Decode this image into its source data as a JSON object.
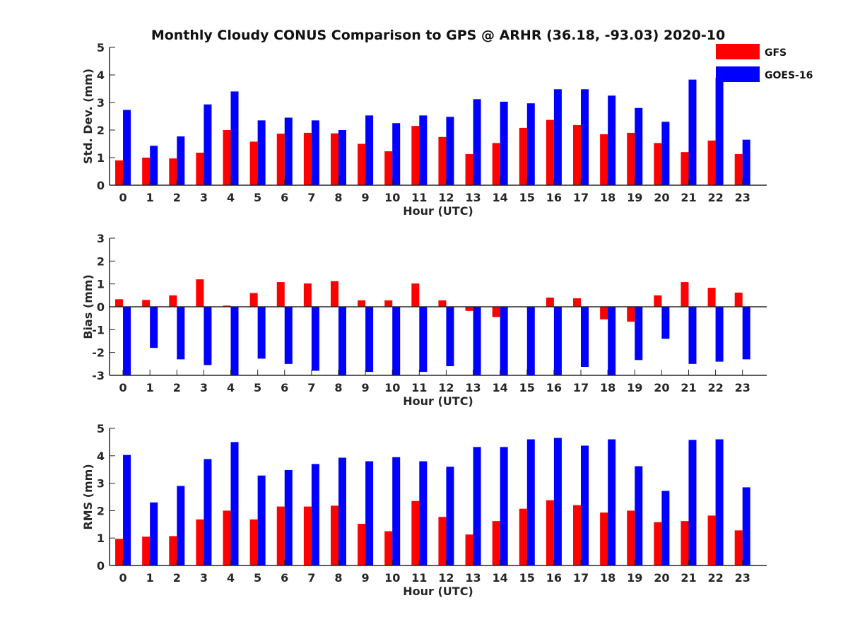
{
  "figure": {
    "title": "Monthly Cloudy CONUS Comparison to GPS @ ARHR (36.18, -93.03) 2020-10"
  },
  "legend": {
    "placement": "top-right",
    "entries": [
      {
        "name": "GFS",
        "color": "#ff0000"
      },
      {
        "name": "GOES-16",
        "color": "#0000ff"
      }
    ]
  },
  "chart_data": [
    {
      "type": "bar",
      "ylabel": "Std. Dev. (mm)",
      "xlabel": "Hour (UTC)",
      "ylim": [
        0,
        5
      ],
      "yticks": [
        0,
        1,
        2,
        3,
        4,
        5
      ],
      "categories": [
        "0",
        "1",
        "2",
        "3",
        "4",
        "5",
        "6",
        "7",
        "8",
        "9",
        "10",
        "11",
        "12",
        "13",
        "14",
        "15",
        "16",
        "17",
        "18",
        "19",
        "20",
        "21",
        "22",
        "23"
      ],
      "series": [
        {
          "name": "GFS",
          "color": "#ff0000",
          "values": [
            0.9,
            1.0,
            0.97,
            1.18,
            2.0,
            1.58,
            1.87,
            1.9,
            1.88,
            1.5,
            1.23,
            2.15,
            1.75,
            1.13,
            1.53,
            2.08,
            2.37,
            2.18,
            1.85,
            1.9,
            1.53,
            1.2,
            1.62,
            1.13
          ]
        },
        {
          "name": "GOES-16",
          "color": "#0000ff",
          "values": [
            2.73,
            1.43,
            1.77,
            2.93,
            3.4,
            2.35,
            2.45,
            2.35,
            2.0,
            2.53,
            2.25,
            2.53,
            2.48,
            3.12,
            3.03,
            2.97,
            3.48,
            3.48,
            3.25,
            2.8,
            2.3,
            3.83,
            3.9,
            1.65
          ]
        }
      ]
    },
    {
      "type": "bar",
      "ylabel": "Bias (mm)",
      "xlabel": "Hour (UTC)",
      "ylim": [
        -3,
        3
      ],
      "yticks": [
        -3,
        -2,
        -1,
        0,
        1,
        2,
        3
      ],
      "categories": [
        "0",
        "1",
        "2",
        "3",
        "4",
        "5",
        "6",
        "7",
        "8",
        "9",
        "10",
        "11",
        "12",
        "13",
        "14",
        "15",
        "16",
        "17",
        "18",
        "19",
        "20",
        "21",
        "22",
        "23"
      ],
      "series": [
        {
          "name": "GFS",
          "color": "#ff0000",
          "values": [
            0.33,
            0.3,
            0.5,
            1.2,
            0.05,
            0.6,
            1.08,
            1.02,
            1.12,
            0.28,
            0.28,
            1.02,
            0.28,
            -0.18,
            -0.45,
            0.0,
            0.4,
            0.37,
            -0.55,
            -0.65,
            0.5,
            1.08,
            0.83,
            0.62
          ]
        },
        {
          "name": "GOES-16",
          "color": "#0000ff",
          "values": [
            -3.0,
            -1.8,
            -2.3,
            -2.55,
            -3.0,
            -2.27,
            -2.5,
            -2.8,
            -3.0,
            -2.85,
            -3.0,
            -2.85,
            -2.6,
            -3.0,
            -3.0,
            -3.0,
            -3.0,
            -2.63,
            -3.0,
            -2.33,
            -1.4,
            -2.5,
            -2.4,
            -2.3
          ]
        }
      ]
    },
    {
      "type": "bar",
      "ylabel": "RMS (mm)",
      "xlabel": "Hour (UTC)",
      "ylim": [
        0,
        5
      ],
      "yticks": [
        0,
        1,
        2,
        3,
        4,
        5
      ],
      "categories": [
        "0",
        "1",
        "2",
        "3",
        "4",
        "5",
        "6",
        "7",
        "8",
        "9",
        "10",
        "11",
        "12",
        "13",
        "14",
        "15",
        "16",
        "17",
        "18",
        "19",
        "20",
        "21",
        "22",
        "23"
      ],
      "series": [
        {
          "name": "GFS",
          "color": "#ff0000",
          "values": [
            0.97,
            1.05,
            1.07,
            1.68,
            2.0,
            1.68,
            2.15,
            2.15,
            2.18,
            1.52,
            1.25,
            2.35,
            1.77,
            1.13,
            1.62,
            2.07,
            2.38,
            2.2,
            1.93,
            2.0,
            1.58,
            1.62,
            1.82,
            1.28
          ]
        },
        {
          "name": "GOES-16",
          "color": "#0000ff",
          "values": [
            4.03,
            2.3,
            2.9,
            3.88,
            4.5,
            3.28,
            3.48,
            3.7,
            3.93,
            3.8,
            3.95,
            3.8,
            3.6,
            4.32,
            4.32,
            4.6,
            4.65,
            4.37,
            4.6,
            3.62,
            2.72,
            4.58,
            4.6,
            2.85
          ]
        }
      ]
    }
  ]
}
